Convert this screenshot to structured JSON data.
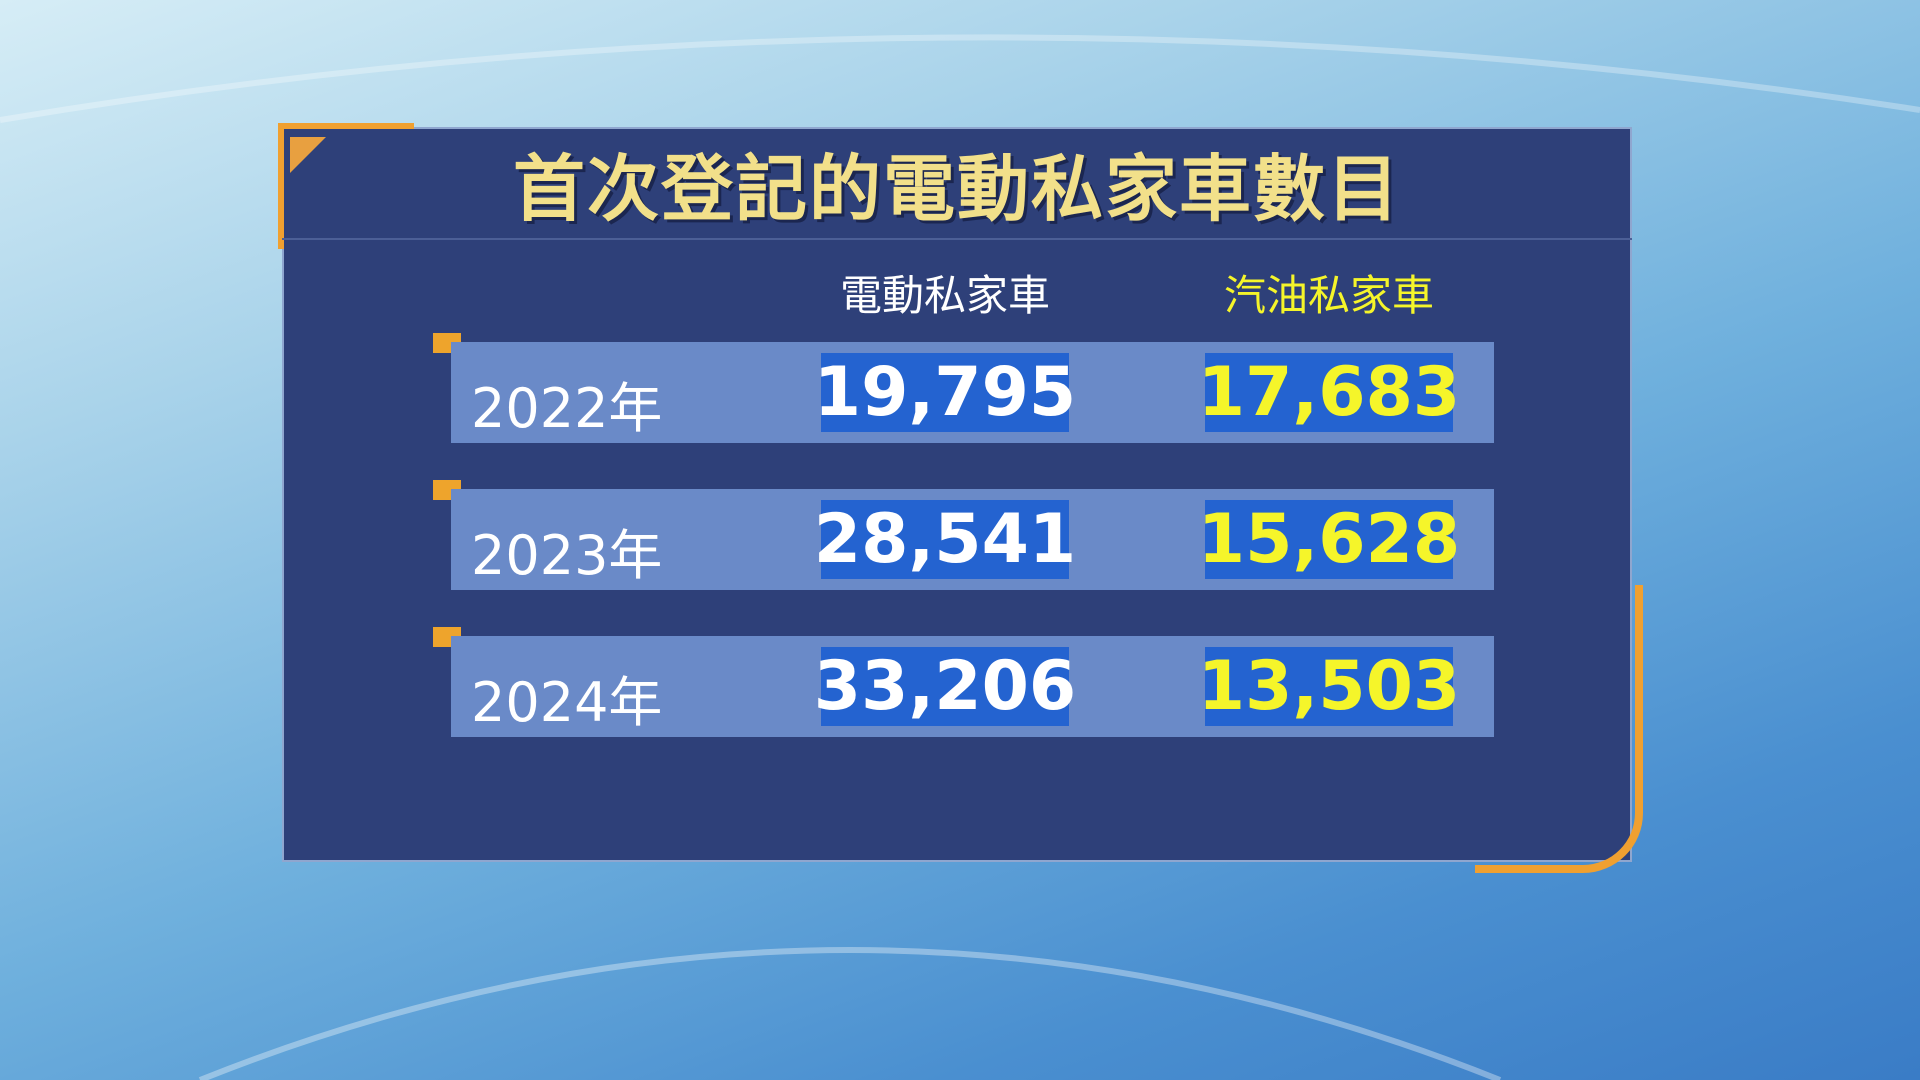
{
  "title": "首次登記的電動私家車數目",
  "columns": {
    "electric": "電動私家車",
    "petrol": "汽油私家車"
  },
  "rows": [
    {
      "year": "2022年",
      "electric": "19,795",
      "petrol": "17,683"
    },
    {
      "year": "2023年",
      "electric": "28,541",
      "petrol": "15,628"
    },
    {
      "year": "2024年",
      "electric": "33,206",
      "petrol": "13,503"
    }
  ],
  "colors": {
    "panel": "#2e4079",
    "title": "#f2e08a",
    "accent": "#f0a030",
    "electric_text": "#ffffff",
    "petrol_text": "#f5f52a",
    "cell": "#2463d0",
    "row": "#6a8ac8"
  }
}
